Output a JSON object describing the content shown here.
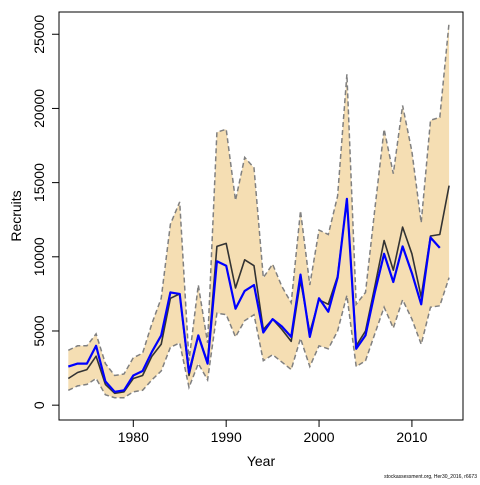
{
  "chart_data": {
    "type": "line",
    "title": "",
    "xlabel": "Year",
    "ylabel": "Recruits",
    "xlim": [
      1972,
      2015.5
    ],
    "ylim": [
      -1000,
      26500
    ],
    "x_ticks": [
      1980,
      1990,
      2000,
      2010
    ],
    "y_ticks": [
      0,
      5000,
      10000,
      15000,
      20000,
      25000
    ],
    "grid": false,
    "legend": "none",
    "footnote": "stockassessment.org, Her30_2016, r6673",
    "colors": {
      "band_fill": "#f5deb3",
      "band_edge": "#808080",
      "black_line": "#333333",
      "blue_line": "#0000ff"
    },
    "band": {
      "x": [
        1973,
        1974,
        1975,
        1976,
        1977,
        1978,
        1979,
        1980,
        1981,
        1982,
        1983,
        1984,
        1985,
        1986,
        1987,
        1988,
        1989,
        1990,
        1991,
        1992,
        1993,
        1994,
        1995,
        1996,
        1997,
        1998,
        1999,
        2000,
        2001,
        2002,
        2003,
        2004,
        2005,
        2006,
        2007,
        2008,
        2009,
        2010,
        2011,
        2012,
        2013,
        2014
      ],
      "upper": [
        3700,
        4000,
        4000,
        4800,
        2800,
        2000,
        2100,
        3200,
        3500,
        5500,
        7200,
        12200,
        13700,
        3000,
        8100,
        4200,
        18400,
        18600,
        13800,
        16700,
        16000,
        8600,
        9500,
        8000,
        6900,
        13100,
        8100,
        11800,
        11500,
        14100,
        22300,
        6800,
        7600,
        13200,
        18600,
        15600,
        20200,
        17100,
        12300,
        19200,
        19400,
        25800
      ],
      "lower": [
        1000,
        1300,
        1400,
        1800,
        700,
        500,
        500,
        900,
        1000,
        1700,
        2300,
        3900,
        4200,
        1200,
        2800,
        1700,
        6200,
        6100,
        4600,
        5700,
        6100,
        3000,
        3400,
        2900,
        2400,
        4500,
        2600,
        4000,
        3800,
        5000,
        7400,
        2600,
        3000,
        4800,
        6600,
        5200,
        7100,
        5800,
        4100,
        6600,
        6700,
        8600
      ]
    },
    "series": [
      {
        "color": "#333333",
        "x": [
          1973,
          1974,
          1975,
          1976,
          1977,
          1978,
          1979,
          1980,
          1981,
          1982,
          1983,
          1984,
          1985,
          1986,
          1987,
          1988,
          1989,
          1990,
          1991,
          1992,
          1993,
          1994,
          1995,
          1996,
          1997,
          1998,
          1999,
          2000,
          2001,
          2002,
          2003,
          2004,
          2005,
          2006,
          2007,
          2008,
          2009,
          2010,
          2011,
          2012,
          2013,
          2014
        ],
        "y": [
          1800,
          2200,
          2400,
          3300,
          1400,
          800,
          900,
          1800,
          2000,
          3300,
          4100,
          7200,
          7500,
          2000,
          4700,
          2900,
          10700,
          10900,
          7900,
          9800,
          9400,
          5100,
          5800,
          5100,
          4300,
          8400,
          4900,
          7100,
          6800,
          8700,
          13900,
          4000,
          5000,
          8000,
          11100,
          9100,
          12000,
          10200,
          7300,
          11400,
          11500,
          14800
        ]
      },
      {
        "color": "#0000ff",
        "x": [
          1973,
          1974,
          1975,
          1976,
          1977,
          1978,
          1979,
          1980,
          1981,
          1982,
          1983,
          1984,
          1985,
          1986,
          1987,
          1988,
          1989,
          1990,
          1991,
          1992,
          1993,
          1994,
          1995,
          1996,
          1997,
          1998,
          1999,
          2000,
          2001,
          2002,
          2003,
          2004,
          2005,
          2006,
          2007,
          2008,
          2009,
          2010,
          2011,
          2012,
          2013
        ],
        "y": [
          2600,
          2800,
          2800,
          4000,
          1600,
          900,
          1000,
          2000,
          2300,
          3600,
          4700,
          7600,
          7500,
          2200,
          4700,
          2800,
          9700,
          9400,
          6500,
          7700,
          8100,
          4900,
          5800,
          5300,
          4600,
          8800,
          4600,
          7200,
          6300,
          8600,
          13900,
          3800,
          4700,
          7600,
          10200,
          8300,
          10700,
          8900,
          6800,
          11300,
          10600
        ]
      }
    ]
  }
}
